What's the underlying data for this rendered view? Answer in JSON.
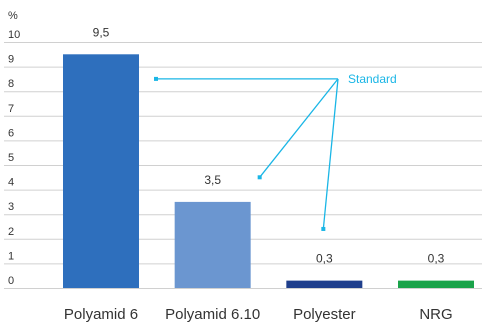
{
  "chart_data": {
    "type": "bar",
    "y_unit": "%",
    "categories": [
      "Polyamid 6",
      "Polyamid 6.10",
      "Polyester",
      "NRG"
    ],
    "values": [
      9.5,
      3.5,
      0.3,
      0.3
    ],
    "value_labels": [
      "9,5",
      "3,5",
      "0,3",
      "0,3"
    ],
    "bar_colors": [
      "#2e6fbd",
      "#6b96d0",
      "#1f3f8c",
      "#1aa34a"
    ],
    "ylim": [
      0,
      10
    ],
    "yticks": [
      "0",
      "1",
      "2",
      "3",
      "4",
      "5",
      "6",
      "7",
      "8",
      "9",
      "10"
    ],
    "grid": true,
    "annotation": {
      "label": "Standard",
      "color": "#1ab6e6",
      "points_to": [
        {
          "category": "Polyamid 6",
          "y": 8.5
        },
        {
          "category": "Polyamid 6.10",
          "y": 4.5
        },
        {
          "category": "Polyester",
          "y": 2.4
        }
      ]
    }
  }
}
